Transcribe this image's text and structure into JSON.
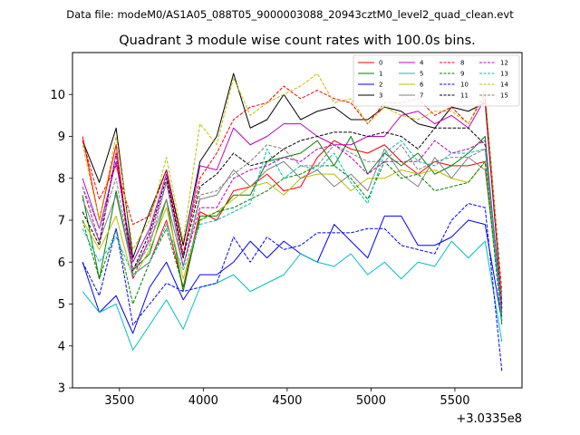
{
  "chart_data": {
    "type": "line",
    "suptitle": "Data file: modeM0/AS1A05_088T05_9000003088_20943cztM0_level2_quad_clean.evt",
    "title": "Quadrant 3 module wise count rates with 100.0s bins.",
    "xlabel": "",
    "ylabel": "",
    "x_offset_label": "+3.0335e8",
    "xlim": [
      3220,
      5900
    ],
    "ylim": [
      3,
      11
    ],
    "xticks": [
      3500,
      4000,
      4500,
      5000,
      5500
    ],
    "yticks": [
      3,
      4,
      5,
      6,
      7,
      8,
      9,
      10
    ],
    "grid": false,
    "legend_position": "top-right",
    "x": [
      3280,
      3380,
      3480,
      3580,
      3680,
      3780,
      3880,
      3980,
      4080,
      4180,
      4280,
      4380,
      4480,
      4580,
      4680,
      4780,
      4880,
      4980,
      5080,
      5180,
      5280,
      5380,
      5480,
      5580,
      5680,
      5780
    ],
    "series": [
      {
        "name": "0",
        "color": "#ff0000",
        "dash": "solid",
        "values": [
          9.0,
          7.0,
          8.8,
          5.7,
          6.0,
          7.0,
          5.4,
          7.2,
          7.0,
          7.7,
          7.8,
          8.1,
          7.7,
          7.8,
          8.5,
          8.9,
          8.7,
          8.6,
          8.8,
          8.4,
          8.1,
          8.4,
          8.3,
          8.3,
          8.4,
          4.9
        ]
      },
      {
        "name": "1",
        "color": "#008000",
        "dash": "solid",
        "values": [
          7.6,
          5.6,
          7.7,
          5.8,
          6.2,
          7.5,
          5.3,
          7.1,
          7.1,
          7.6,
          7.6,
          8.4,
          8.5,
          8.6,
          8.9,
          8.3,
          9.0,
          8.1,
          8.6,
          8.3,
          8.6,
          8.1,
          8.3,
          8.6,
          9.0,
          4.7
        ]
      },
      {
        "name": "2",
        "color": "#0000ff",
        "dash": "solid",
        "values": [
          6.0,
          4.8,
          5.2,
          4.3,
          5.4,
          6.0,
          5.1,
          5.7,
          5.7,
          6.0,
          6.5,
          6.1,
          6.5,
          6.2,
          6.0,
          6.9,
          6.5,
          6.1,
          7.1,
          7.1,
          6.4,
          6.4,
          6.6,
          7.0,
          6.9,
          4.6
        ]
      },
      {
        "name": "3",
        "color": "#000000",
        "dash": "solid",
        "values": [
          8.9,
          7.9,
          9.2,
          6.1,
          7.2,
          8.2,
          6.4,
          8.4,
          9.0,
          10.5,
          9.2,
          9.4,
          10.0,
          9.4,
          9.6,
          9.7,
          9.4,
          9.4,
          9.7,
          9.6,
          9.3,
          9.2,
          9.7,
          9.6,
          9.8,
          5.0
        ]
      },
      {
        "name": "4",
        "color": "#bf00bf",
        "dash": "solid",
        "values": [
          8.0,
          6.8,
          8.4,
          6.0,
          6.8,
          8.1,
          6.1,
          8.3,
          8.2,
          9.2,
          8.8,
          9.0,
          9.3,
          9.3,
          9.0,
          8.8,
          8.8,
          9.0,
          9.0,
          9.5,
          9.6,
          9.3,
          9.5,
          9.2,
          9.9,
          5.1
        ]
      },
      {
        "name": "5",
        "color": "#00bfbf",
        "dash": "solid",
        "values": [
          5.3,
          4.8,
          5.0,
          3.9,
          4.5,
          5.1,
          4.4,
          5.4,
          5.5,
          5.7,
          5.3,
          5.5,
          5.7,
          6.2,
          6.0,
          5.9,
          6.2,
          5.7,
          6.0,
          5.6,
          6.0,
          5.9,
          6.5,
          6.1,
          6.5,
          4.1
        ]
      },
      {
        "name": "6",
        "color": "#bfbf00",
        "dash": "solid",
        "values": [
          7.0,
          6.3,
          7.1,
          5.6,
          6.3,
          7.3,
          5.6,
          7.0,
          7.2,
          7.5,
          7.8,
          7.9,
          7.6,
          8.0,
          8.1,
          8.1,
          7.7,
          8.0,
          8.0,
          8.2,
          8.1,
          8.2,
          8.0,
          7.9,
          8.4,
          4.8
        ]
      },
      {
        "name": "7",
        "color": "#808080",
        "dash": "solid",
        "values": [
          7.5,
          6.5,
          7.6,
          5.8,
          6.5,
          7.5,
          5.9,
          7.5,
          7.6,
          8.2,
          7.8,
          8.2,
          8.4,
          8.0,
          8.2,
          7.8,
          8.1,
          7.7,
          8.7,
          8.1,
          7.8,
          8.5,
          8.0,
          8.5,
          8.2,
          4.8
        ]
      },
      {
        "name": "8",
        "color": "#ff0000",
        "dash": "dashed",
        "values": [
          8.9,
          7.5,
          8.3,
          6.9,
          7.1,
          8.2,
          6.2,
          8.0,
          8.6,
          9.4,
          9.7,
          9.8,
          10.2,
          9.9,
          10.1,
          9.9,
          9.8,
          9.3,
          9.8,
          9.8,
          9.9,
          9.5,
          9.7,
          9.3,
          10.0,
          5.3
        ]
      },
      {
        "name": "9",
        "color": "#008000",
        "dash": "dashed",
        "values": [
          7.0,
          5.6,
          6.8,
          5.0,
          6.0,
          6.8,
          5.4,
          7.0,
          7.2,
          7.3,
          7.5,
          7.7,
          8.0,
          8.1,
          8.3,
          8.3,
          8.0,
          7.5,
          8.4,
          8.0,
          8.1,
          7.7,
          7.8,
          7.9,
          8.4,
          4.5
        ]
      },
      {
        "name": "10",
        "color": "#0000ff",
        "dash": "dashed",
        "values": [
          6.0,
          5.2,
          6.8,
          4.5,
          5.0,
          5.5,
          5.3,
          5.4,
          5.5,
          6.6,
          6.0,
          6.6,
          6.3,
          6.4,
          6.7,
          6.7,
          6.7,
          6.8,
          6.8,
          6.4,
          6.3,
          6.2,
          7.0,
          7.4,
          7.3,
          3.4
        ]
      },
      {
        "name": "11",
        "color": "#000000",
        "dash": "dashed",
        "values": [
          7.2,
          6.4,
          8.6,
          5.8,
          6.7,
          8.0,
          6.1,
          7.8,
          8.1,
          8.6,
          8.3,
          8.4,
          8.7,
          8.9,
          9.0,
          9.1,
          9.1,
          9.0,
          9.1,
          9.0,
          8.7,
          9.2,
          9.2,
          9.2,
          8.8,
          4.9
        ]
      },
      {
        "name": "12",
        "color": "#bf00bf",
        "dash": "dashed",
        "values": [
          7.8,
          6.5,
          8.6,
          5.6,
          6.6,
          7.9,
          5.9,
          7.3,
          7.3,
          8.0,
          8.2,
          8.3,
          8.5,
          8.4,
          8.7,
          8.8,
          8.5,
          8.1,
          8.4,
          8.4,
          8.4,
          8.9,
          8.6,
          8.7,
          8.9,
          4.8
        ]
      },
      {
        "name": "13",
        "color": "#00bfbf",
        "dash": "dashed",
        "values": [
          6.8,
          6.0,
          6.6,
          5.7,
          6.0,
          6.9,
          5.8,
          6.9,
          7.0,
          7.2,
          7.4,
          8.7,
          8.0,
          8.3,
          8.2,
          8.6,
          7.9,
          7.4,
          8.6,
          8.9,
          8.4,
          8.3,
          8.6,
          8.6,
          8.7,
          4.6
        ]
      },
      {
        "name": "14",
        "color": "#bfbf00",
        "dash": "dashed",
        "values": [
          8.8,
          7.0,
          9.0,
          6.3,
          7.0,
          8.5,
          6.5,
          9.3,
          8.8,
          10.4,
          9.5,
          9.8,
          10.0,
          10.2,
          10.5,
          9.8,
          9.9,
          9.3,
          9.7,
          9.5,
          9.4,
          9.6,
          9.6,
          9.3,
          10.1,
          5.2
        ]
      },
      {
        "name": "15",
        "color": "#808080",
        "dash": "dashed",
        "values": [
          7.8,
          6.8,
          8.0,
          5.8,
          6.4,
          7.9,
          5.9,
          7.6,
          7.7,
          8.1,
          8.4,
          8.8,
          8.7,
          8.3,
          8.3,
          8.8,
          8.6,
          8.4,
          8.4,
          8.8,
          8.2,
          8.4,
          8.5,
          8.5,
          8.7,
          5.0
        ]
      }
    ]
  }
}
